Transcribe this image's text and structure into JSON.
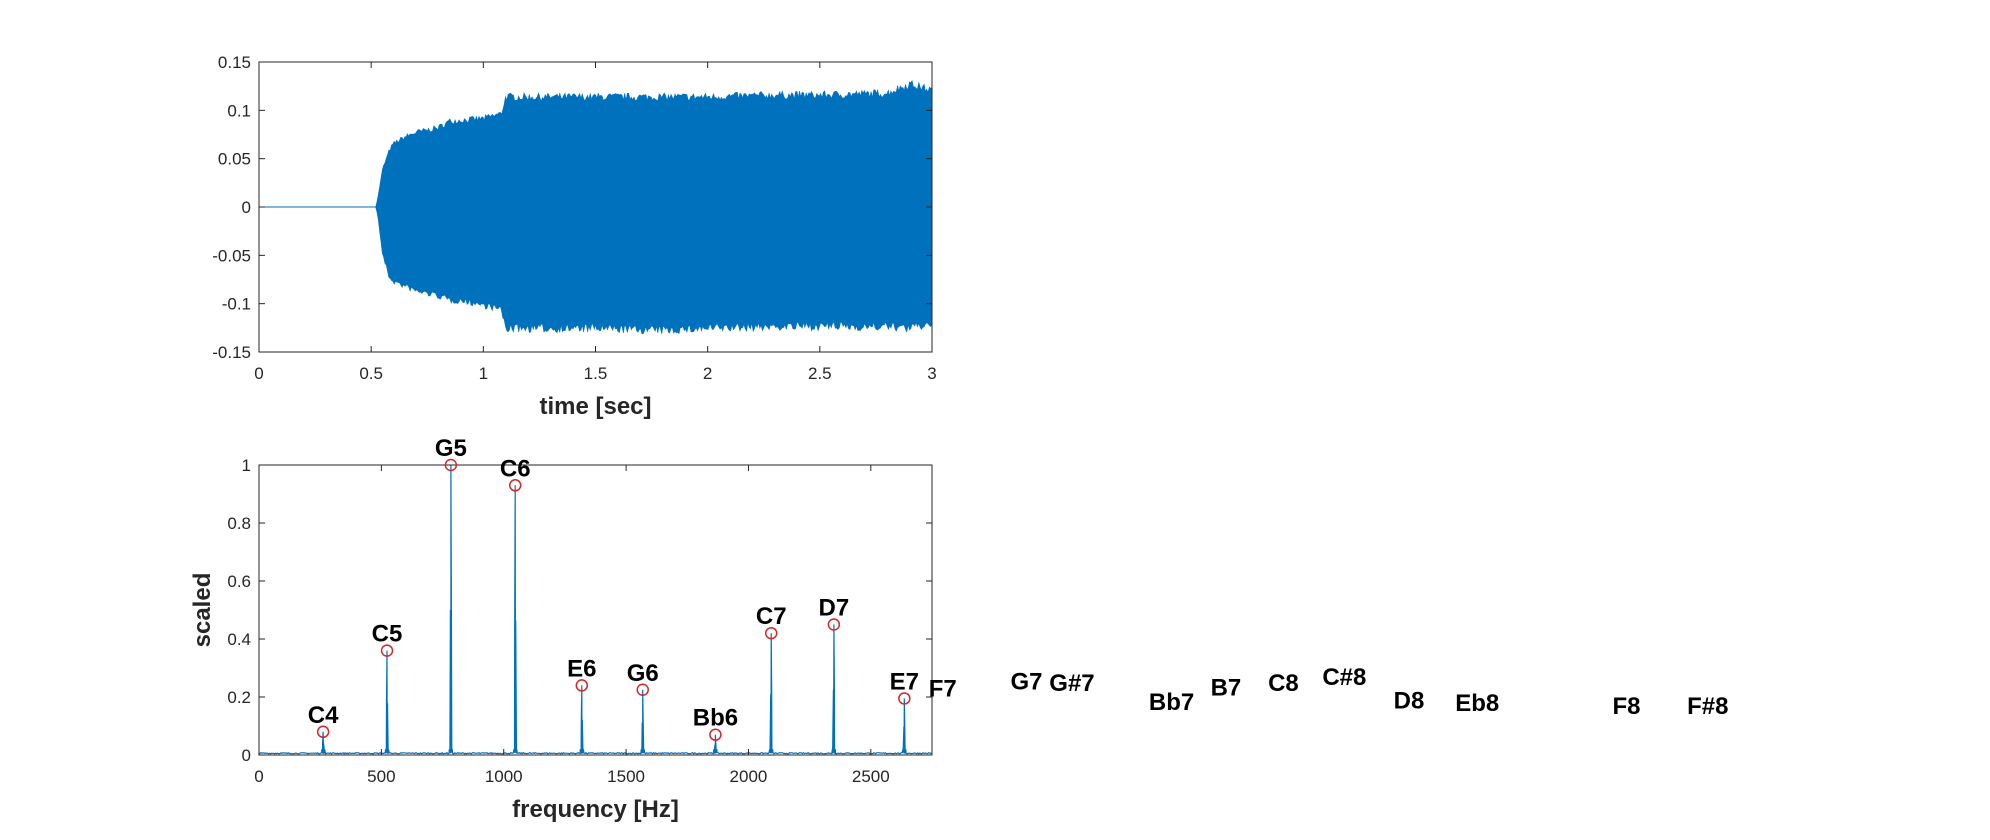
{
  "chart_data": [
    {
      "type": "area",
      "xlabel": "time [sec]",
      "ylabel": "",
      "xlim": [
        0,
        3
      ],
      "ylim": [
        -0.15,
        0.15
      ],
      "xticks": [
        0,
        0.5,
        1,
        1.5,
        2,
        2.5,
        3
      ],
      "xtick_labels": [
        "0",
        "0.5",
        "1",
        "1.5",
        "2",
        "2.5",
        "3"
      ],
      "yticks": [
        -0.15,
        -0.1,
        -0.05,
        0,
        0.05,
        0.1,
        0.15
      ],
      "ytick_labels": [
        "-0.15",
        "-0.1",
        "-0.05",
        "0",
        "0.05",
        "0.1",
        "0.15"
      ],
      "grid": false,
      "color": "#0072BD",
      "envelope": {
        "t": [
          0.52,
          0.53,
          0.55,
          0.58,
          0.6,
          0.65,
          0.7,
          0.8,
          0.85,
          0.9,
          1.0,
          1.08,
          1.1,
          1.2,
          1.5,
          1.8,
          2.0,
          2.3,
          2.5,
          2.8,
          2.9,
          3.0
        ],
        "upper": [
          0.0,
          0.01,
          0.04,
          0.06,
          0.068,
          0.075,
          0.08,
          0.085,
          0.092,
          0.093,
          0.095,
          0.1,
          0.118,
          0.118,
          0.118,
          0.118,
          0.118,
          0.12,
          0.12,
          0.122,
          0.132,
          0.125
        ],
        "lower": [
          0.0,
          -0.01,
          -0.05,
          -0.075,
          -0.08,
          -0.085,
          -0.09,
          -0.095,
          -0.1,
          -0.1,
          -0.105,
          -0.11,
          -0.13,
          -0.13,
          -0.13,
          -0.132,
          -0.13,
          -0.128,
          -0.128,
          -0.128,
          -0.13,
          -0.125
        ]
      }
    },
    {
      "type": "line",
      "xlabel": "frequency [Hz]",
      "ylabel": "scaled",
      "xlim": [
        0,
        2750
      ],
      "ylim": [
        0,
        1
      ],
      "xticks": [
        0,
        500,
        1000,
        1500,
        2000,
        2500
      ],
      "xtick_labels": [
        "0",
        "500",
        "1000",
        "1500",
        "2000",
        "2500"
      ],
      "yticks": [
        0,
        0.2,
        0.4,
        0.6,
        0.8,
        1
      ],
      "ytick_labels": [
        "0",
        "0.2",
        "0.4",
        "0.6",
        "0.8",
        "1"
      ],
      "grid": false,
      "color": "#0072BD",
      "marker_color": "#D62728",
      "peaks": [
        {
          "note": "C4",
          "f": 262,
          "a": 0.08
        },
        {
          "note": "C5",
          "f": 523,
          "a": 0.36
        },
        {
          "note": "G5",
          "f": 784,
          "a": 1.0
        },
        {
          "note": "C6",
          "f": 1047,
          "a": 0.93
        },
        {
          "note": "E6",
          "f": 1319,
          "a": 0.24
        },
        {
          "note": "G6",
          "f": 1568,
          "a": 0.225
        },
        {
          "note": "Bb6",
          "f": 1865,
          "a": 0.07
        },
        {
          "note": "C7",
          "f": 2093,
          "a": 0.42
        },
        {
          "note": "D7",
          "f": 2349,
          "a": 0.45
        },
        {
          "note": "E7",
          "f": 2637,
          "a": 0.195
        }
      ],
      "outside_labels": [
        {
          "note": "F7",
          "f": 2794,
          "a": 0.17
        },
        {
          "note": "G7",
          "f": 3136,
          "a": 0.195
        },
        {
          "note": "G#7",
          "f": 3322,
          "a": 0.19
        },
        {
          "note": "Bb7",
          "f": 3729,
          "a": 0.125
        },
        {
          "note": "B7",
          "f": 3951,
          "a": 0.175
        },
        {
          "note": "C8",
          "f": 4186,
          "a": 0.19
        },
        {
          "note": "C#8",
          "f": 4435,
          "a": 0.21
        },
        {
          "note": "D8",
          "f": 4699,
          "a": 0.13
        },
        {
          "note": "Eb8",
          "f": 4978,
          "a": 0.12
        },
        {
          "note": "F8",
          "f": 5588,
          "a": 0.11
        },
        {
          "note": "F#8",
          "f": 5920,
          "a": 0.11
        }
      ]
    }
  ]
}
